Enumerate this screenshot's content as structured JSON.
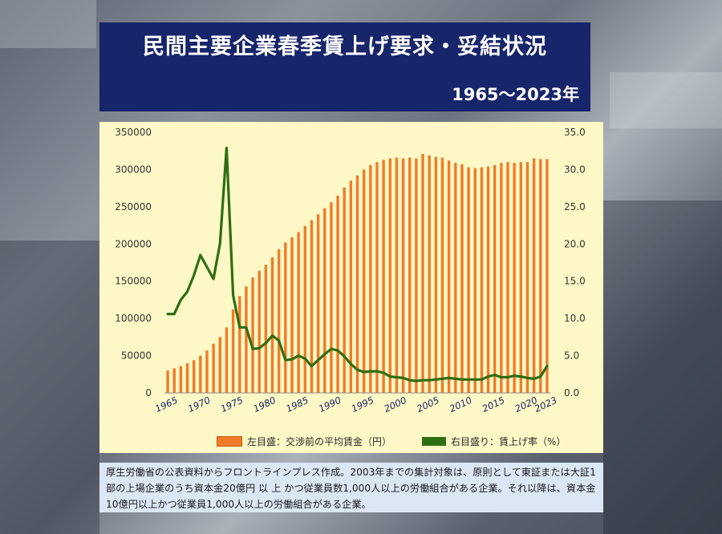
{
  "title": "民間主要企業春季賃上げ要求・妥結状況",
  "period": "1965〜2023年",
  "colors": {
    "bar": "#f07c2a",
    "line": "#2e6e12",
    "title_bg": "#17256b"
  },
  "legend": {
    "left": "左目盛：交渉前の平均賃金（円）",
    "right": "右目盛り：賃上げ率（%）"
  },
  "note": "厚生労働省の公表資料からフロントラインプレス作成。2003年までの集計対象は、原則として東証または大証1部の上場企業のうち資本金20億円 以 上 かつ従業員数1,000人以上の労働組合がある企業。それ以降は、資本金10億円以上かつ従業員1,000人以上の労働組合がある企業。",
  "chart_data": {
    "type": "bar+line",
    "x_tick_labels": [
      "1965",
      "1970",
      "1975",
      "1980",
      "1985",
      "1990",
      "1995",
      "2000",
      "2005",
      "2010",
      "2015",
      "2020",
      "2023"
    ],
    "left_axis": {
      "label": "交渉前の平均賃金（円）",
      "ylim": [
        0,
        350000
      ],
      "ticks": [
        "0",
        "50000",
        "100000",
        "150000",
        "200000",
        "250000",
        "300000",
        "350000"
      ]
    },
    "right_axis": {
      "label": "賃上げ率（%）",
      "ylim": [
        0,
        35
      ],
      "ticks": [
        "0.0",
        "5.0",
        "10.0",
        "15.0",
        "20.0",
        "25.0",
        "30.0",
        "35.0"
      ]
    },
    "years": [
      1965,
      1966,
      1967,
      1968,
      1969,
      1970,
      1971,
      1972,
      1973,
      1974,
      1975,
      1976,
      1977,
      1978,
      1979,
      1980,
      1981,
      1982,
      1983,
      1984,
      1985,
      1986,
      1987,
      1988,
      1989,
      1990,
      1991,
      1992,
      1993,
      1994,
      1995,
      1996,
      1997,
      1998,
      1999,
      2000,
      2001,
      2002,
      2003,
      2004,
      2005,
      2006,
      2007,
      2008,
      2009,
      2010,
      2011,
      2012,
      2013,
      2014,
      2015,
      2016,
      2017,
      2018,
      2019,
      2020,
      2021,
      2022,
      2023
    ],
    "series": [
      {
        "name": "交渉前の平均賃金（円）",
        "axis": "left",
        "type": "bar",
        "values": [
          30000,
          33000,
          36000,
          40000,
          44000,
          50000,
          57000,
          66000,
          75000,
          88000,
          112000,
          130000,
          143000,
          155000,
          164000,
          172000,
          182000,
          193000,
          202000,
          209000,
          216000,
          224000,
          232000,
          240000,
          248000,
          256000,
          265000,
          276000,
          285000,
          292000,
          300000,
          306000,
          310000,
          313000,
          315000,
          316000,
          315000,
          316000,
          315000,
          321000,
          319000,
          317000,
          316000,
          312000,
          309000,
          307000,
          303000,
          302000,
          303000,
          304000,
          306000,
          309000,
          310000,
          309000,
          310000,
          310000,
          315000,
          314000,
          314000
        ]
      },
      {
        "name": "賃上げ率（%）",
        "axis": "right",
        "type": "line",
        "values": [
          10.6,
          10.6,
          12.5,
          13.6,
          15.8,
          18.5,
          16.9,
          15.3,
          20.1,
          32.9,
          13.1,
          8.8,
          8.8,
          5.9,
          6.0,
          6.7,
          7.7,
          7.0,
          4.4,
          4.5,
          5.0,
          4.6,
          3.6,
          4.4,
          5.2,
          5.9,
          5.7,
          4.9,
          3.9,
          3.1,
          2.8,
          2.9,
          2.9,
          2.7,
          2.2,
          2.1,
          2.0,
          1.7,
          1.6,
          1.7,
          1.7,
          1.8,
          1.9,
          2.0,
          1.9,
          1.8,
          1.8,
          1.8,
          1.8,
          2.2,
          2.4,
          2.1,
          2.1,
          2.3,
          2.2,
          2.0,
          1.9,
          2.2,
          3.6
        ]
      }
    ]
  }
}
